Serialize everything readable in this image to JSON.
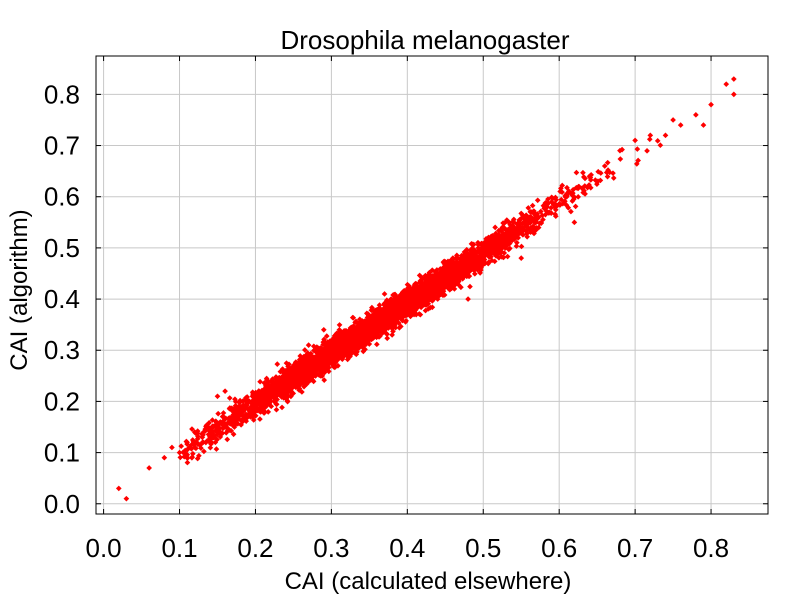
{
  "chart_data": {
    "type": "scatter",
    "title": "Drosophila melanogaster",
    "xlabel": "CAI (calculated elsewhere)",
    "ylabel": "CAI (algorithm)",
    "xlim": [
      -0.01,
      0.875
    ],
    "ylim": [
      -0.02,
      0.875
    ],
    "xticks": [
      "0.0",
      "0.1",
      "0.2",
      "0.3",
      "0.4",
      "0.5",
      "0.6",
      "0.7",
      "0.8"
    ],
    "yticks": [
      "0.0",
      "0.1",
      "0.2",
      "0.3",
      "0.4",
      "0.5",
      "0.6",
      "0.7",
      "0.8"
    ],
    "grid": true,
    "marker_color": "#ff0000",
    "trend": {
      "slope": 0.98,
      "intercept": 0.0
    },
    "points": [
      {
        "x": 0.02,
        "y": 0.03
      },
      {
        "x": 0.03,
        "y": 0.01
      },
      {
        "x": 0.06,
        "y": 0.07
      },
      {
        "x": 0.08,
        "y": 0.09
      },
      {
        "x": 0.09,
        "y": 0.11
      },
      {
        "x": 0.1,
        "y": 0.1
      },
      {
        "x": 0.11,
        "y": 0.12
      },
      {
        "x": 0.12,
        "y": 0.11
      },
      {
        "x": 0.12,
        "y": 0.14
      },
      {
        "x": 0.13,
        "y": 0.13
      },
      {
        "x": 0.14,
        "y": 0.12
      },
      {
        "x": 0.15,
        "y": 0.21
      },
      {
        "x": 0.16,
        "y": 0.22
      },
      {
        "x": 0.15,
        "y": 0.15
      },
      {
        "x": 0.17,
        "y": 0.16
      },
      {
        "x": 0.18,
        "y": 0.19
      },
      {
        "x": 0.2,
        "y": 0.21
      },
      {
        "x": 0.22,
        "y": 0.2
      },
      {
        "x": 0.24,
        "y": 0.26
      },
      {
        "x": 0.26,
        "y": 0.24
      },
      {
        "x": 0.27,
        "y": 0.31
      },
      {
        "x": 0.29,
        "y": 0.34
      },
      {
        "x": 0.3,
        "y": 0.28
      },
      {
        "x": 0.32,
        "y": 0.3
      },
      {
        "x": 0.35,
        "y": 0.34
      },
      {
        "x": 0.37,
        "y": 0.41
      },
      {
        "x": 0.38,
        "y": 0.33
      },
      {
        "x": 0.4,
        "y": 0.37
      },
      {
        "x": 0.42,
        "y": 0.44
      },
      {
        "x": 0.44,
        "y": 0.4
      },
      {
        "x": 0.46,
        "y": 0.48
      },
      {
        "x": 0.48,
        "y": 0.4
      },
      {
        "x": 0.5,
        "y": 0.49
      },
      {
        "x": 0.52,
        "y": 0.51
      },
      {
        "x": 0.54,
        "y": 0.55
      },
      {
        "x": 0.55,
        "y": 0.48
      },
      {
        "x": 0.57,
        "y": 0.56
      },
      {
        "x": 0.59,
        "y": 0.59
      },
      {
        "x": 0.61,
        "y": 0.6
      },
      {
        "x": 0.62,
        "y": 0.55
      },
      {
        "x": 0.64,
        "y": 0.64
      },
      {
        "x": 0.66,
        "y": 0.66
      },
      {
        "x": 0.68,
        "y": 0.69
      },
      {
        "x": 0.7,
        "y": 0.71
      },
      {
        "x": 0.72,
        "y": 0.72
      },
      {
        "x": 0.74,
        "y": 0.72
      },
      {
        "x": 0.75,
        "y": 0.75
      },
      {
        "x": 0.76,
        "y": 0.74
      },
      {
        "x": 0.78,
        "y": 0.76
      },
      {
        "x": 0.79,
        "y": 0.74
      },
      {
        "x": 0.8,
        "y": 0.78
      },
      {
        "x": 0.82,
        "y": 0.82
      },
      {
        "x": 0.83,
        "y": 0.83
      },
      {
        "x": 0.83,
        "y": 0.8
      }
    ]
  }
}
